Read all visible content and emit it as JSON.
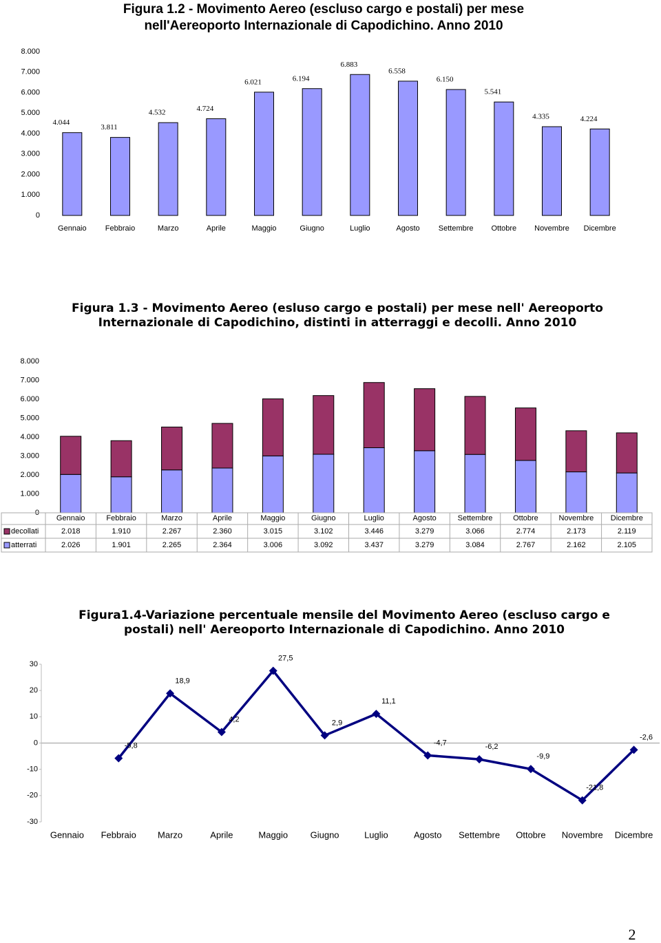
{
  "page_number": "2",
  "chart_data": [
    {
      "type": "bar",
      "title": "Figura 1.2 - Movimento Aereo (escluso cargo e postali) per mese nell'Aereoporto Internazionale di Capodichino. Anno 2010",
      "categories": [
        "Gennaio",
        "Febbraio",
        "Marzo",
        "Aprile",
        "Maggio",
        "Giugno",
        "Luglio",
        "Agosto",
        "Settembre",
        "Ottobre",
        "Novembre",
        "Dicembre"
      ],
      "values": [
        4044,
        3811,
        4532,
        4724,
        6021,
        6194,
        6883,
        6558,
        6150,
        5541,
        4335,
        4224
      ],
      "value_labels": [
        "4.044",
        "3.811",
        "4.532",
        "4.724",
        "6.021",
        "6.194",
        "6.883",
        "6.558",
        "6.150",
        "5.541",
        "4.335",
        "4.224"
      ],
      "color": "#9999ff",
      "ylim": [
        0,
        8000
      ],
      "yticks": [
        0,
        {
          "value": 1000,
          "label": "1.000"
        },
        {
          "value": 2000,
          "label": "2.000"
        },
        {
          "value": 3000,
          "label": "3.000"
        },
        {
          "value": 4000,
          "label": "4.000"
        },
        {
          "value": 5000,
          "label": "5.000"
        },
        {
          "value": 6000,
          "label": "6.000"
        },
        {
          "value": 7000,
          "label": "7.000"
        },
        {
          "value": 8000,
          "label": "8.000"
        }
      ]
    },
    {
      "type": "stacked_bar",
      "title": "Figura 1.3 - Movimento Aereo (esluso cargo e postali) per mese nell' Aereoporto Internazionale di Capodichino, distinti in atterraggi e decolli. Anno 2010",
      "categories": [
        "Gennaio",
        "Febbraio",
        "Marzo",
        "Aprile",
        "Maggio",
        "Giugno",
        "Luglio",
        "Agosto",
        "Settembre",
        "Ottobre",
        "Novembre",
        "Dicembre"
      ],
      "series": [
        {
          "name": "decollati",
          "color": "#993366",
          "values": [
            2018,
            1910,
            2267,
            2360,
            3015,
            3102,
            3446,
            3279,
            3066,
            2774,
            2173,
            2119
          ],
          "value_labels": [
            "2.018",
            "1.910",
            "2.267",
            "2.360",
            "3.015",
            "3.102",
            "3.446",
            "3.279",
            "3.066",
            "2.774",
            "2.173",
            "2.119"
          ]
        },
        {
          "name": "atterrati",
          "color": "#9999ff",
          "values": [
            2026,
            1901,
            2265,
            2364,
            3006,
            3092,
            3437,
            3279,
            3084,
            2767,
            2162,
            2105
          ],
          "value_labels": [
            "2.026",
            "1.901",
            "2.265",
            "2.364",
            "3.006",
            "3.092",
            "3.437",
            "3.279",
            "3.084",
            "2.767",
            "2.162",
            "2.105"
          ]
        }
      ],
      "ylim": [
        0,
        8000
      ],
      "yticks": [
        0,
        {
          "value": 1000,
          "label": "1.000"
        },
        {
          "value": 2000,
          "label": "2.000"
        },
        {
          "value": 3000,
          "label": "3.000"
        },
        {
          "value": 4000,
          "label": "4.000"
        },
        {
          "value": 5000,
          "label": "5.000"
        },
        {
          "value": 6000,
          "label": "6.000"
        },
        {
          "value": 7000,
          "label": "7.000"
        },
        {
          "value": 8000,
          "label": "8.000"
        }
      ]
    },
    {
      "type": "line",
      "title": "Figura1.4-Variazione percentuale mensile del Movimento Aereo (escluso cargo e postali) nell' Aereoporto Internazionale di Capodichino. Anno 2010",
      "categories": [
        "Gennaio",
        "Febbraio",
        "Marzo",
        "Aprile",
        "Maggio",
        "Giugno",
        "Luglio",
        "Agosto",
        "Settembre",
        "Ottobre",
        "Novembre",
        "Dicembre"
      ],
      "values": [
        null,
        -5.8,
        18.9,
        4.2,
        27.5,
        2.9,
        11.1,
        -4.7,
        -6.2,
        -9.9,
        -21.8,
        -2.6
      ],
      "value_labels": [
        null,
        "-5,8",
        "18,9",
        "4,2",
        "27,5",
        "2,9",
        "11,1",
        "-4,7",
        "-6,2",
        "-9,9",
        "-21,8",
        "-2,6"
      ],
      "color": "#000080",
      "ylim": [
        -30,
        30
      ],
      "yticks": [
        -30,
        -20,
        -10,
        0,
        10,
        20,
        30
      ]
    }
  ]
}
